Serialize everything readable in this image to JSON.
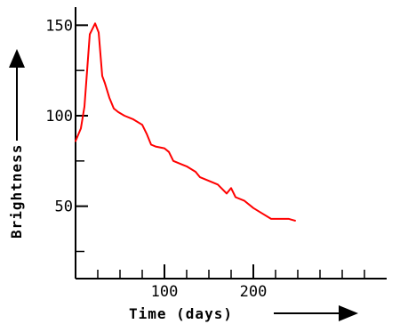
{
  "chart_data": {
    "type": "line",
    "title": "",
    "xlabel": "Time (days)",
    "ylabel": "Brightness",
    "xlim": [
      0,
      350
    ],
    "ylim": [
      10,
      160
    ],
    "x_ticks": [
      100,
      200
    ],
    "y_ticks": [
      50,
      100,
      150
    ],
    "x_minor_ticks": [
      25,
      50,
      75,
      125,
      150,
      175,
      225,
      250,
      275,
      300,
      325
    ],
    "y_minor_ticks": [
      25,
      75,
      125
    ],
    "grid": false,
    "legend": "none",
    "series": [
      {
        "color": "#ff0000",
        "x": [
          0,
          6,
          10,
          13,
          16,
          19,
          22,
          26,
          30,
          33,
          38,
          43,
          48,
          55,
          65,
          75,
          80,
          85,
          90,
          100,
          105,
          110,
          120,
          125,
          135,
          140,
          150,
          160,
          170,
          175,
          180,
          190,
          200,
          210,
          220,
          230,
          240,
          247
        ],
        "y": [
          86,
          93,
          105,
          125,
          145,
          148,
          151,
          146,
          122,
          118,
          110,
          104,
          102,
          100,
          98,
          95,
          90,
          84,
          83,
          82,
          80,
          75,
          73,
          72,
          69,
          66,
          64,
          62,
          57,
          60,
          55,
          53,
          49,
          46,
          43,
          43,
          43,
          42
        ]
      }
    ]
  }
}
